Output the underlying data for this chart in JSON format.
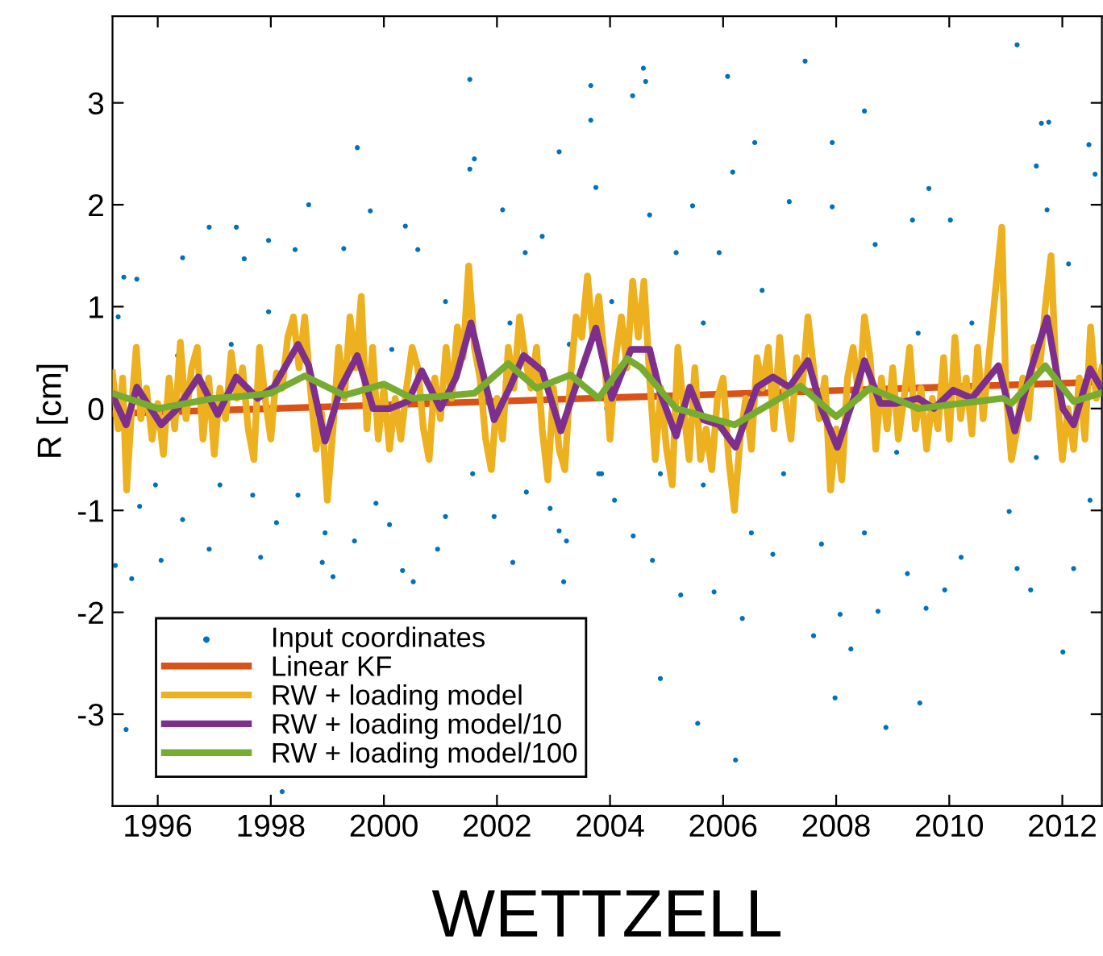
{
  "chart_data": {
    "type": "line",
    "xlabel": "WETTZELL",
    "ylabel": "R [cm]",
    "xlim": [
      1995.2,
      2012.7
    ],
    "ylim": [
      -3.9,
      3.85
    ],
    "xticks": [
      1996,
      1998,
      2000,
      2002,
      2004,
      2006,
      2008,
      2010,
      2012
    ],
    "yticks": [
      -3,
      -2,
      -1,
      0,
      1,
      2,
      3
    ],
    "legend": "bottom left",
    "series": [
      {
        "name": "Input coordinates",
        "type": "scatter",
        "color": "#0072bd",
        "x": [
          1995.44,
          1998.2,
          2001.52,
          2003.66,
          2003.66,
          1999.53,
          2003.1,
          2001.52,
          2001.6,
          1998.67,
          1999.76,
          2002.1,
          2003.75,
          1996.91,
          1997.39,
          1997.96,
          2000.38,
          1996.44,
          1995.4,
          1995.63,
          1999.29,
          2000.6,
          2002.5,
          2002.8,
          1997.53,
          1998.43,
          1995.3,
          1996.35,
          1997.3,
          1997.96,
          2000.14,
          2001.09,
          2002.23,
          2003.28,
          1995.96,
          1995.68,
          1996.44,
          1996.06,
          1995.54,
          1995.25,
          1996.91,
          1997.1,
          1997.68,
          1997.82,
          1998.1,
          1998.48,
          1998.96,
          1998.91,
          1999.1,
          1999.48,
          1999.86,
          2000.1,
          2000.33,
          2000.52,
          2000.95,
          2001.09,
          2001.57,
          2001.95,
          2002.28,
          2002.52,
          2002.94,
          2003.1,
          2003.18,
          2003.23,
          2003.8,
          2003.94,
          2011.2,
          2007.45,
          2006.08,
          2004.59,
          2004.63,
          2004.4,
          2008.5,
          2011.63,
          2011.76,
          2012.47,
          2007.93,
          2006.56,
          2012.58,
          2011.54,
          2006.17,
          2011.73,
          2009.64,
          2007.93,
          2007.17,
          2005.46,
          2004.7,
          2005.17,
          2009.35,
          2010.02,
          2005.93,
          2008.69,
          2012.11,
          2006.69,
          2004.03,
          2010.4,
          2009.45,
          2005.65,
          2006.22,
          2008.88,
          2007.98,
          2009.48,
          2005.55,
          2004.89,
          2012.01,
          2008.26,
          2007.6,
          2008.07,
          2008.74,
          2005.25,
          2005.84,
          2006.34,
          2009.59,
          2011.44,
          2009.92,
          2011.2,
          2012.2,
          2004.75,
          2006.88,
          2007.74,
          2004.41,
          2009.26,
          2004.08,
          2005.65,
          2006.5,
          2008.5,
          2010.21,
          2011.06,
          2012.49,
          2004.89,
          2007.07,
          2009.07,
          2011.54,
          2003.85
        ],
        "values": [
          -3.15,
          -3.76,
          3.23,
          3.17,
          2.83,
          2.56,
          2.52,
          2.35,
          2.45,
          2.0,
          1.94,
          1.95,
          2.17,
          1.78,
          1.78,
          1.65,
          1.79,
          1.48,
          1.29,
          1.27,
          1.57,
          1.56,
          1.53,
          1.69,
          1.47,
          1.56,
          0.9,
          0.52,
          0.63,
          0.95,
          0.58,
          1.05,
          0.84,
          0.63,
          -0.75,
          -0.96,
          -1.09,
          -1.49,
          -1.67,
          -1.54,
          -1.38,
          -0.75,
          -0.85,
          -1.46,
          -1.12,
          -0.85,
          -1.22,
          -1.51,
          -1.65,
          -1.3,
          -0.93,
          -1.14,
          -1.59,
          -1.7,
          -1.38,
          -1.06,
          -0.64,
          -1.06,
          -1.51,
          -0.82,
          -0.98,
          -1.2,
          -1.7,
          -1.3,
          -0.64,
          0.0,
          3.57,
          3.41,
          3.26,
          3.34,
          3.21,
          3.07,
          2.92,
          2.8,
          2.81,
          2.59,
          2.61,
          2.61,
          2.3,
          2.38,
          2.32,
          1.95,
          2.16,
          1.98,
          2.03,
          1.99,
          1.9,
          1.53,
          1.85,
          1.85,
          1.53,
          1.61,
          1.42,
          1.16,
          1.05,
          0.84,
          0.74,
          0.84,
          -3.45,
          -3.13,
          -2.84,
          -2.89,
          -3.09,
          -2.65,
          -2.39,
          -2.36,
          -2.23,
          -2.02,
          -1.99,
          -1.83,
          -1.8,
          -2.06,
          -1.96,
          -1.78,
          -1.78,
          -1.57,
          -1.57,
          -1.49,
          -1.43,
          -1.33,
          -1.25,
          -1.62,
          -0.9,
          -0.75,
          -1.22,
          -1.22,
          -1.46,
          -1.01,
          -0.9,
          -0.64,
          -0.64,
          -0.43,
          -0.48,
          -0.64
        ]
      },
      {
        "name": "Linear KF",
        "color": "#d95319",
        "x": [
          1995.2,
          2012.7
        ],
        "values": [
          -0.05,
          0.26
        ]
      },
      {
        "name": "RW + loading model",
        "color": "#edb120",
        "x": [
          1995.2,
          1995.3,
          1995.38,
          1995.45,
          1995.55,
          1995.62,
          1995.7,
          1995.8,
          1995.9,
          1996.0,
          1996.1,
          1996.2,
          1996.3,
          1996.4,
          1996.5,
          1996.6,
          1996.7,
          1996.8,
          1996.9,
          1997.0,
          1997.1,
          1997.2,
          1997.3,
          1997.4,
          1997.5,
          1997.6,
          1997.7,
          1997.8,
          1997.9,
          1998.0,
          1998.1,
          1998.2,
          1998.3,
          1998.4,
          1998.5,
          1998.6,
          1998.7,
          1998.8,
          1998.9,
          1999.0,
          1999.1,
          1999.2,
          1999.3,
          1999.4,
          1999.5,
          1999.6,
          1999.7,
          1999.8,
          1999.9,
          2000.0,
          2000.1,
          2000.2,
          2000.3,
          2000.4,
          2000.5,
          2000.6,
          2000.7,
          2000.8,
          2000.9,
          2001.0,
          2001.1,
          2001.2,
          2001.3,
          2001.4,
          2001.5,
          2001.6,
          2001.7,
          2001.8,
          2001.9,
          2002.0,
          2002.1,
          2002.2,
          2002.3,
          2002.4,
          2002.5,
          2002.6,
          2002.7,
          2002.8,
          2002.9,
          2003.0,
          2003.1,
          2003.2,
          2003.3,
          2003.4,
          2003.5,
          2003.6,
          2003.7,
          2003.8,
          2003.9,
          2004.0,
          2004.1,
          2004.2,
          2004.3,
          2004.4,
          2004.5,
          2004.6,
          2004.7,
          2004.8,
          2004.9,
          2005.0,
          2005.1,
          2005.2,
          2005.3,
          2005.4,
          2005.5,
          2005.6,
          2005.7,
          2005.8,
          2005.9,
          2006.0,
          2006.1,
          2006.2,
          2006.3,
          2006.4,
          2006.5,
          2006.6,
          2006.7,
          2006.8,
          2006.9,
          2007.0,
          2007.1,
          2007.2,
          2007.3,
          2007.4,
          2007.5,
          2007.6,
          2007.7,
          2007.8,
          2007.9,
          2008.0,
          2008.1,
          2008.2,
          2008.3,
          2008.4,
          2008.5,
          2008.6,
          2008.7,
          2008.8,
          2008.9,
          2009.0,
          2009.1,
          2009.2,
          2009.3,
          2009.4,
          2009.5,
          2009.6,
          2009.7,
          2009.8,
          2009.9,
          2010.0,
          2010.1,
          2010.2,
          2010.3,
          2010.4,
          2010.5,
          2010.6,
          2010.7,
          2010.93,
          2011.0,
          2011.1,
          2011.2,
          2011.3,
          2011.4,
          2011.5,
          2011.6,
          2011.7,
          2011.8,
          2011.9,
          2012.0,
          2012.1,
          2012.2,
          2012.3,
          2012.4,
          2012.5,
          2012.6,
          2012.7
        ],
        "values": [
          0.35,
          -0.2,
          0.3,
          -0.8,
          0.1,
          0.6,
          -0.1,
          0.2,
          -0.3,
          0.05,
          -0.45,
          0.3,
          -0.2,
          0.65,
          -0.1,
          0.4,
          0.6,
          -0.3,
          0.3,
          -0.45,
          0.2,
          -0.1,
          0.55,
          0.1,
          0.4,
          -0.2,
          -0.5,
          0.6,
          0.1,
          -0.3,
          0.35,
          0.2,
          0.7,
          0.9,
          0.4,
          0.9,
          0.2,
          -0.4,
          -0.05,
          -0.9,
          -0.2,
          0.6,
          0.1,
          0.9,
          0.4,
          1.1,
          -0.2,
          0.6,
          -0.3,
          0.2,
          -0.4,
          0.1,
          -0.3,
          0.2,
          0.6,
          0.4,
          -0.2,
          -0.5,
          0.3,
          -0.1,
          0.6,
          0.1,
          0.8,
          0.5,
          1.4,
          0.6,
          0.3,
          -0.3,
          -0.6,
          0.1,
          -0.3,
          0.6,
          0.2,
          0.9,
          0.5,
          0.2,
          0.6,
          -0.2,
          -0.7,
          0.2,
          -0.4,
          -0.6,
          0.3,
          0.9,
          0.7,
          1.3,
          0.7,
          1.1,
          0.5,
          -0.3,
          0.5,
          0.9,
          0.4,
          1.25,
          0.7,
          1.25,
          0.3,
          -0.5,
          0.2,
          -0.4,
          -0.75,
          0.6,
          0.0,
          -0.5,
          0.4,
          -0.5,
          -0.2,
          -0.6,
          0.1,
          0.3,
          -0.5,
          -1.0,
          -0.3,
          0.1,
          -0.4,
          0.5,
          0.2,
          0.6,
          -0.2,
          0.7,
          0.1,
          -0.3,
          0.5,
          0.2,
          0.9,
          0.4,
          -0.1,
          0.3,
          -0.8,
          -0.2,
          -0.7,
          0.3,
          0.6,
          0.1,
          0.9,
          0.5,
          -0.4,
          0.3,
          -0.2,
          0.4,
          -0.3,
          0.1,
          0.6,
          -0.2,
          0.2,
          -0.4,
          0.1,
          -0.2,
          0.5,
          -0.3,
          0.7,
          -0.1,
          0.3,
          -0.25,
          0.6,
          -0.1,
          0.5,
          1.78,
          0.2,
          -0.5,
          -0.2,
          0.3,
          -0.1,
          0.6,
          0.4,
          1.0,
          1.5,
          0.2,
          -0.5,
          0.0,
          -0.4,
          0.3,
          -0.3,
          0.8,
          0.1,
          0.4
        ]
      },
      {
        "name": "RW + loading model/10",
        "color": "#7e2f8e",
        "x": [
          1995.2,
          1995.44,
          1995.63,
          1996.06,
          1996.35,
          1996.72,
          1997.06,
          1997.39,
          1997.77,
          1998.05,
          1998.48,
          1998.67,
          1998.96,
          1999.24,
          1999.53,
          1999.81,
          2000.1,
          2000.43,
          2000.67,
          2001.0,
          2001.28,
          2001.54,
          2001.95,
          2002.23,
          2002.47,
          2002.8,
          2003.13,
          2003.42,
          2003.75,
          2004.03,
          2004.37,
          2004.7,
          2004.89,
          2005.17,
          2005.41,
          2005.65,
          2005.93,
          2006.22,
          2006.6,
          2006.88,
          2007.17,
          2007.5,
          2007.74,
          2008.02,
          2008.31,
          2008.5,
          2008.78,
          2009.07,
          2009.45,
          2009.73,
          2010.07,
          2010.4,
          2010.87,
          2011.16,
          2011.44,
          2011.73,
          2012.01,
          2012.2,
          2012.49,
          2012.68
        ],
        "values": [
          0.13,
          -0.16,
          0.21,
          -0.16,
          0.0,
          0.31,
          -0.06,
          0.31,
          0.1,
          0.21,
          0.63,
          0.42,
          -0.32,
          0.21,
          0.52,
          0.0,
          0.0,
          0.07,
          0.37,
          0.0,
          0.31,
          0.84,
          -0.11,
          0.21,
          0.52,
          0.37,
          -0.22,
          0.26,
          0.79,
          0.1,
          0.58,
          0.58,
          0.15,
          -0.27,
          0.21,
          -0.11,
          -0.16,
          -0.38,
          0.21,
          0.31,
          0.21,
          0.47,
          0.0,
          -0.38,
          0.1,
          0.47,
          0.05,
          0.05,
          0.1,
          0.0,
          0.18,
          0.1,
          0.42,
          -0.22,
          0.37,
          0.89,
          0.0,
          -0.16,
          0.39,
          0.21
        ]
      },
      {
        "name": "RW + loading model/100",
        "color": "#77ac30",
        "x": [
          1995.2,
          1996.0,
          1996.5,
          1997.0,
          1997.5,
          1998.0,
          1998.6,
          1999.3,
          2000.0,
          2000.5,
          2001.0,
          2001.6,
          2002.2,
          2002.7,
          2003.3,
          2003.8,
          2004.3,
          2004.55,
          2005.17,
          2006.2,
          2007.37,
          2008.0,
          2008.6,
          2009.45,
          2010.95,
          2011.1,
          2011.7,
          2012.2,
          2012.67
        ],
        "values": [
          0.15,
          0.0,
          0.05,
          0.1,
          0.12,
          0.15,
          0.32,
          0.13,
          0.24,
          0.1,
          0.12,
          0.15,
          0.44,
          0.2,
          0.33,
          0.1,
          0.49,
          0.4,
          0.0,
          -0.16,
          0.22,
          -0.08,
          0.2,
          0.0,
          0.1,
          0.05,
          0.42,
          0.07,
          0.15
        ]
      }
    ]
  }
}
